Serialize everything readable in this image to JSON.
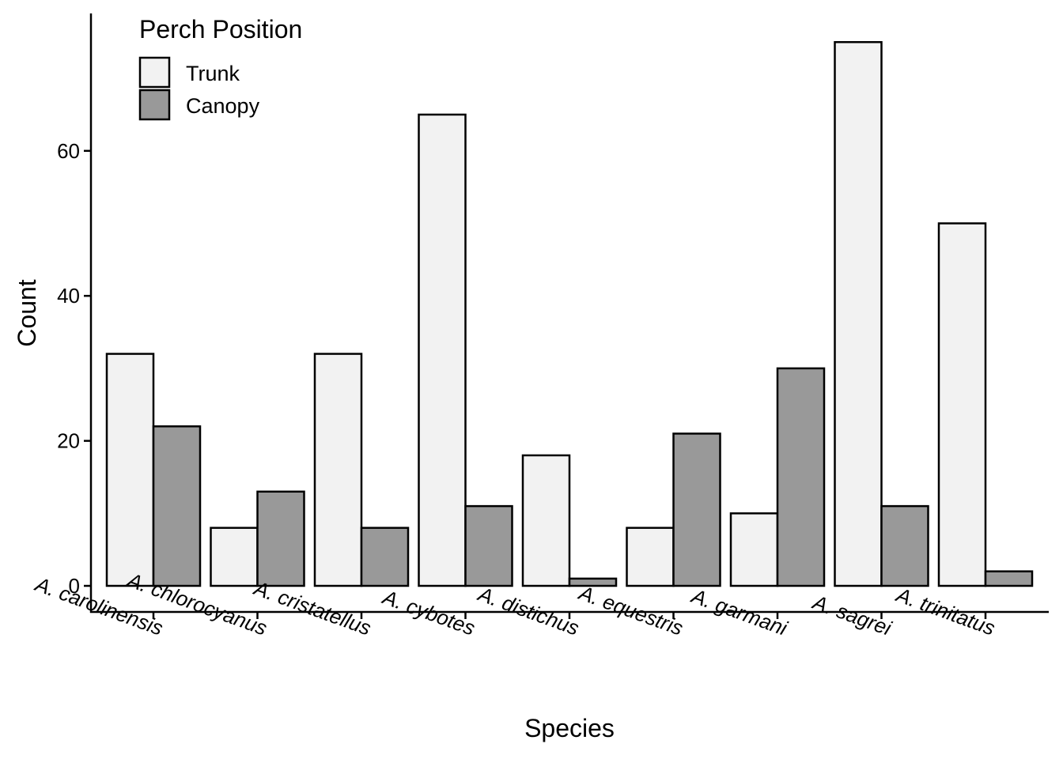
{
  "chart_data": {
    "type": "bar",
    "xlabel": "Species",
    "ylabel": "Count",
    "ylim": [
      0,
      78
    ],
    "y_ticks": [
      0,
      20,
      40,
      60
    ],
    "grid": false,
    "legend": {
      "title": "Perch Position",
      "placement": "top-left"
    },
    "categories": [
      "A. carolinensis",
      "A. chlorocyanus",
      "A. cristatellus",
      "A. cybotes",
      "A. distichus",
      "A. equestris",
      "A. garmani",
      "A. sagrei",
      "A. trinitatus"
    ],
    "series": [
      {
        "name": "Trunk",
        "color": "#f2f2f2",
        "values": [
          32,
          8,
          32,
          65,
          18,
          8,
          10,
          75,
          50
        ]
      },
      {
        "name": "Canopy",
        "color": "#999999",
        "values": [
          22,
          13,
          8,
          11,
          1,
          21,
          30,
          11,
          2
        ]
      }
    ]
  }
}
